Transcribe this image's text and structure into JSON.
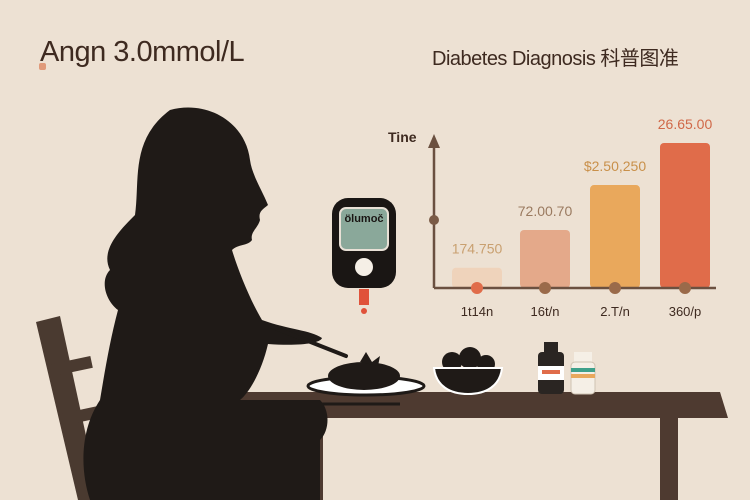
{
  "header": {
    "title": "Angn 3.0mmol/L",
    "subtitle": "Diabetes Diagnosis 科普图准"
  },
  "meter": {
    "screen_text": "ölumoč",
    "screen_color": "#8aa89a",
    "drop_color": "#e0523a"
  },
  "chart_data": {
    "type": "bar",
    "ylabel": "Tine",
    "categories": [
      "1t14n",
      "16t/n",
      "2.T/n",
      "360/p"
    ],
    "data_labels": [
      "174.750",
      "72.00.70",
      "$2.50,250",
      "26.65.00"
    ],
    "values_relative": [
      0.14,
      0.4,
      0.71,
      1.0
    ],
    "colors": [
      "#efd3bb",
      "#e4a98a",
      "#e9a85c",
      "#e06c4a"
    ],
    "label_colors": [
      "#c9a070",
      "#9a7a60",
      "#c9904a",
      "#d06848"
    ],
    "grid": false
  },
  "colors": {
    "background": "#ede1d3",
    "silhouette": "#1f1a17",
    "table": "#4e3a30",
    "axis": "#6b5040"
  }
}
